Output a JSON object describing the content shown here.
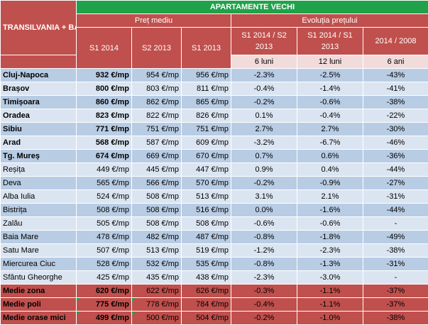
{
  "header": {
    "region_label": "TRANSILVANIA + BANAT + CRIȘANA + MARAMUREȘ",
    "title": "APARTAMENTE VECHI",
    "group_price": "Preț mediu",
    "group_evolution": "Evoluția prețului",
    "col_s1_2014": "S1 2014",
    "col_s2_2013": "S2 2013",
    "col_s1_2013": "S1 2013",
    "col_evo_1": "S1 2014  / S2 2013",
    "col_evo_2": "S1 2014  / S1 2013",
    "col_evo_3": "2014  / 2008",
    "period_1": "6 luni",
    "period_2": "12 luni",
    "period_3": "6 ani"
  },
  "rows": [
    {
      "name": "Cluj-Napoca",
      "s1_2014": "932 €/mp",
      "s2_2013": "954 €/mp",
      "s1_2013": "956 €/mp",
      "evo_6m": "-2.3%",
      "evo_12m": "-2.5%",
      "evo_6y": "-43%"
    },
    {
      "name": "Brașov",
      "s1_2014": "800 €/mp",
      "s2_2013": "803 €/mp",
      "s1_2013": "811 €/mp",
      "evo_6m": "-0.4%",
      "evo_12m": "-1.4%",
      "evo_6y": "-41%"
    },
    {
      "name": "Timișoara",
      "s1_2014": "860 €/mp",
      "s2_2013": "862 €/mp",
      "s1_2013": "865 €/mp",
      "evo_6m": "-0.2%",
      "evo_12m": "-0.6%",
      "evo_6y": "-38%"
    },
    {
      "name": "Oradea",
      "s1_2014": "823 €/mp",
      "s2_2013": "822 €/mp",
      "s1_2013": "826 €/mp",
      "evo_6m": "0.1%",
      "evo_12m": "-0.4%",
      "evo_6y": "-22%"
    },
    {
      "name": "Sibiu",
      "s1_2014": "771 €/mp",
      "s2_2013": "751 €/mp",
      "s1_2013": "751 €/mp",
      "evo_6m": "2.7%",
      "evo_12m": "2.7%",
      "evo_6y": "-30%"
    },
    {
      "name": "Arad",
      "s1_2014": "568 €/mp",
      "s2_2013": "587 €/mp",
      "s1_2013": "609 €/mp",
      "evo_6m": "-3.2%",
      "evo_12m": "-6.7%",
      "evo_6y": "-46%"
    },
    {
      "name": "Tg. Mureș",
      "s1_2014": "674 €/mp",
      "s2_2013": "669 €/mp",
      "s1_2013": "670 €/mp",
      "evo_6m": "0.7%",
      "evo_12m": "0.6%",
      "evo_6y": "-36%"
    },
    {
      "name": "Reșița",
      "s1_2014": "449 €/mp",
      "s2_2013": "445 €/mp",
      "s1_2013": "447 €/mp",
      "evo_6m": "0.9%",
      "evo_12m": "0.4%",
      "evo_6y": "-44%"
    },
    {
      "name": "Deva",
      "s1_2014": "565 €/mp",
      "s2_2013": "566 €/mp",
      "s1_2013": "570 €/mp",
      "evo_6m": "-0.2%",
      "evo_12m": "-0.9%",
      "evo_6y": "-27%"
    },
    {
      "name": "Alba Iulia",
      "s1_2014": "524 €/mp",
      "s2_2013": "508 €/mp",
      "s1_2013": "513 €/mp",
      "evo_6m": "3.1%",
      "evo_12m": "2.1%",
      "evo_6y": "-31%"
    },
    {
      "name": "Bistrița",
      "s1_2014": "508 €/mp",
      "s2_2013": "508 €/mp",
      "s1_2013": "516 €/mp",
      "evo_6m": "0.0%",
      "evo_12m": "-1.6%",
      "evo_6y": "-44%"
    },
    {
      "name": "Zalău",
      "s1_2014": "505 €/mp",
      "s2_2013": "508 €/mp",
      "s1_2013": "508 €/mp",
      "evo_6m": "-0.6%",
      "evo_12m": "-0.6%",
      "evo_6y": "-"
    },
    {
      "name": "Baia Mare",
      "s1_2014": "478 €/mp",
      "s2_2013": "482 €/mp",
      "s1_2013": "487 €/mp",
      "evo_6m": "-0.8%",
      "evo_12m": "-1.8%",
      "evo_6y": "-49%"
    },
    {
      "name": "Satu Mare",
      "s1_2014": "507 €/mp",
      "s2_2013": "513 €/mp",
      "s1_2013": "519 €/mp",
      "evo_6m": "-1.2%",
      "evo_12m": "-2.3%",
      "evo_6y": "-38%"
    },
    {
      "name": "Miercurea Ciuc",
      "s1_2014": "528 €/mp",
      "s2_2013": "532 €/mp",
      "s1_2013": "535 €/mp",
      "evo_6m": "-0.8%",
      "evo_12m": "-1.3%",
      "evo_6y": "-31%"
    },
    {
      "name": "Sfântu Gheorghe",
      "s1_2014": "425 €/mp",
      "s2_2013": "435 €/mp",
      "s1_2013": "438 €/mp",
      "evo_6m": "-2.3%",
      "evo_12m": "-3.0%",
      "evo_6y": "-"
    }
  ],
  "summary": [
    {
      "name": "Medie zona",
      "s1_2014": "620 €/mp",
      "s2_2013": "622 €/mp",
      "s1_2013": "626 €/mp",
      "evo_6m": "-0.3%",
      "evo_12m": "-1.1%",
      "evo_6y": "-37%"
    },
    {
      "name": "Medie poli",
      "s1_2014": "775 €/mp",
      "s2_2013": "778 €/mp",
      "s1_2013": "784 €/mp",
      "evo_6m": "-0.4%",
      "evo_12m": "-1.1%",
      "evo_6y": "-37%"
    },
    {
      "name": "Medie orase mici",
      "s1_2014": "499 €/mp",
      "s2_2013": "500 €/mp",
      "s1_2013": "504 €/mp",
      "evo_6m": "-0.2%",
      "evo_12m": "-1.0%",
      "evo_6y": "-38%"
    }
  ]
}
